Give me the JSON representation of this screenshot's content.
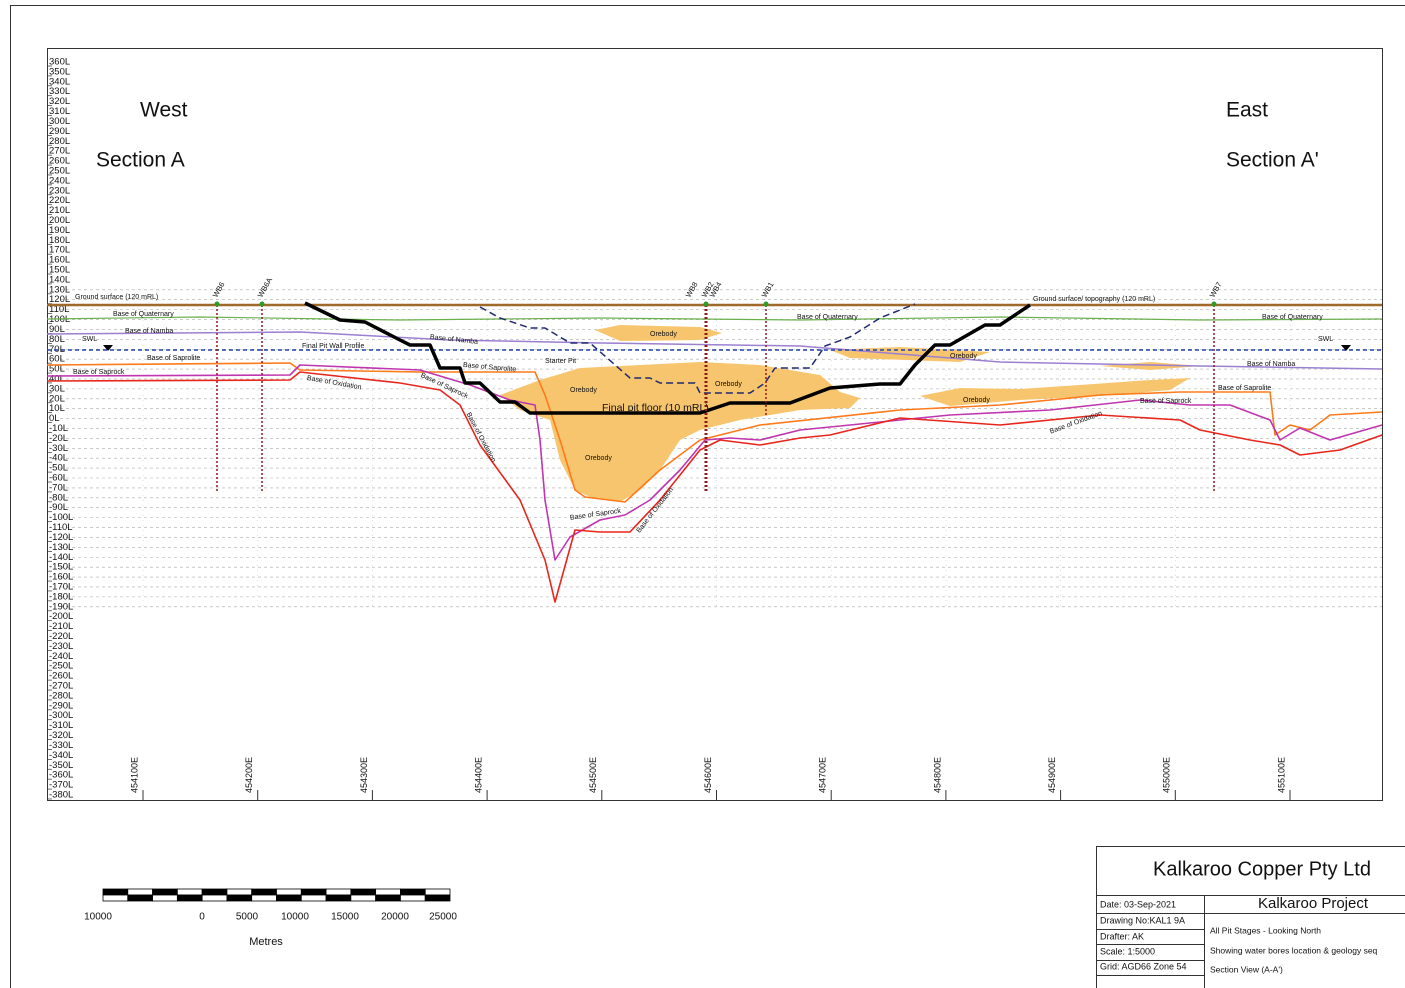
{
  "section_labels": {
    "west": "West",
    "section_a": "Section A",
    "east": "East",
    "section_a_prime": "Section A'"
  },
  "levels": [
    "360L",
    "350L",
    "340L",
    "330L",
    "320L",
    "310L",
    "300L",
    "290L",
    "280L",
    "270L",
    "260L",
    "250L",
    "240L",
    "230L",
    "220L",
    "210L",
    "200L",
    "190L",
    "180L",
    "170L",
    "160L",
    "150L",
    "140L",
    "130L",
    "120L",
    "110L",
    "100L",
    "90L",
    "80L",
    "70L",
    "60L",
    "50L",
    "40L",
    "30L",
    "20L",
    "10L",
    "0L",
    "-10L",
    "-20L",
    "-30L",
    "-40L",
    "-50L",
    "-60L",
    "-70L",
    "-80L",
    "-90L",
    "-100L",
    "-110L",
    "-120L",
    "-130L",
    "-140L",
    "-150L",
    "-160L",
    "-170L",
    "-180L",
    "-190L",
    "-200L",
    "-210L",
    "-220L",
    "-230L",
    "-240L",
    "-250L",
    "-260L",
    "-270L",
    "-280L",
    "-290L",
    "-300L",
    "-310L",
    "-320L",
    "-330L",
    "-340L",
    "-350L",
    "-360L",
    "-370L",
    "-380L"
  ],
  "eastings": [
    "454100E",
    "454200E",
    "454300E",
    "454400E",
    "454500E",
    "454600E",
    "454700E",
    "454800E",
    "454900E",
    "455000E",
    "455100E"
  ],
  "annotations": [
    "Ground surface (120 mRL)",
    "Base of Quaternary",
    "Base of Namba",
    "SWL",
    "Base of Saprolite",
    "Base of Saprock",
    "Base of Oxidation",
    "Final Pit Wall Profile",
    "Base of Namba",
    "Base of Saprock",
    "Base of Saprolite",
    "Base of Oxidation",
    "Starter Pit",
    "Orebody",
    "Orebody",
    "Orebody",
    "Orebody",
    "Final pit floor (10 mRL)",
    "Base of Saprock",
    "Base of Oxidation",
    "Base of Quaternary",
    "Ground surface/ topography (120 mRL)",
    "Orebody",
    "Orebody",
    "Base of Oxidation",
    "Base of Saprock",
    "Base of Saprolite",
    "Base of Namba",
    "Base of Quaternary",
    "SWL"
  ],
  "bores": [
    "WB6",
    "WB6A",
    "WB8",
    "WB2",
    "WB4",
    "WB1",
    "WB7"
  ],
  "scale_bar": {
    "labels": [
      "10000",
      "0",
      "5000",
      "10000",
      "15000",
      "20000",
      "25000"
    ],
    "unit": "Metres"
  },
  "title_block": {
    "company": "Kalkaroo Copper Pty Ltd",
    "project": "Kalkaroo Project",
    "date": "Date: 03-Sep-2021",
    "drawing_no": "Drawing No:KAL1 9A",
    "drafter": "Drafter: AK",
    "scale": "Scale: 1:5000",
    "grid": "Grid: AGD66 Zone 54",
    "description_1": "All Pit Stages - Looking North",
    "description_2": "Showing water bores location & geology seq",
    "description_3": "Section View (A-A')"
  }
}
